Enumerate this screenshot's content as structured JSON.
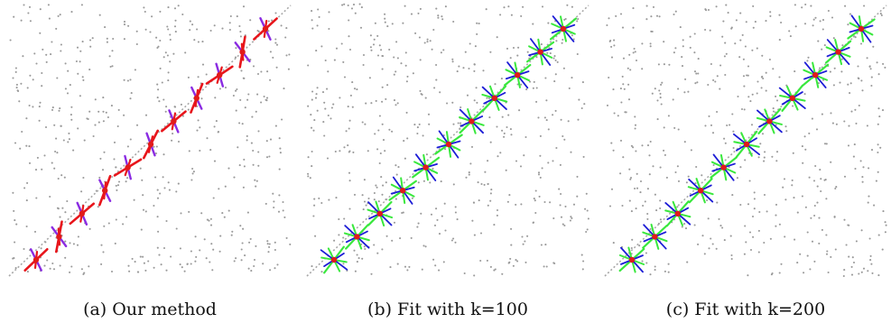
{
  "figure": {
    "panels": [
      {
        "id": "a",
        "caption": "(a) Our method",
        "glyph_style": "long-red-short-purple"
      },
      {
        "id": "b",
        "caption": "(b) Fit with k=100",
        "glyph_style": "blue-green-star"
      },
      {
        "id": "c",
        "caption": "(c) Fit with k=200",
        "glyph_style": "blue-green-star"
      }
    ],
    "colors": {
      "noise": "#9a9a9a",
      "diagonal": "#a8a8a8",
      "center": "#e11a1a",
      "red": "#e8151b",
      "purple": "#8a2be2",
      "blue": "#1c1cd6",
      "green": "#39e83d"
    }
  }
}
